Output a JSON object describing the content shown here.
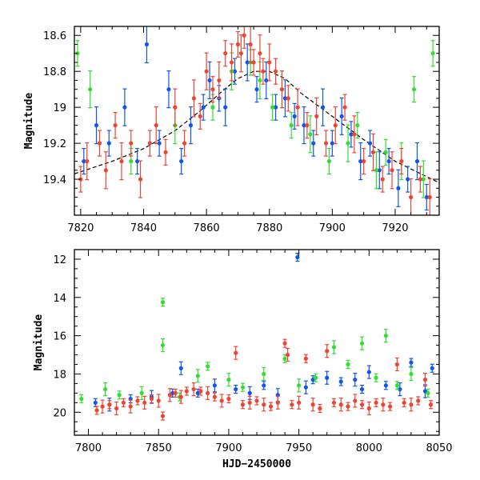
{
  "chart_data": [
    {
      "type": "scatter",
      "xlabel": "",
      "ylabel": "Magnitude",
      "xlim": [
        7818,
        7934
      ],
      "ylim": [
        19.6,
        18.55
      ],
      "inverted_y": true,
      "xticks": [
        7820,
        7840,
        7860,
        7880,
        7900,
        7920
      ],
      "yticks": [
        18.6,
        18.8,
        19,
        19.2,
        19.4
      ],
      "grid": false,
      "model_curve": {
        "style": "dashed",
        "color": "#000000",
        "x": [
          7818,
          7830,
          7840,
          7850,
          7858,
          7865,
          7870,
          7875,
          7880,
          7885,
          7890,
          7900,
          7910,
          7920,
          7934
        ],
        "y": [
          19.37,
          19.3,
          19.23,
          19.13,
          19.02,
          18.91,
          18.84,
          18.8,
          18.8,
          18.84,
          18.92,
          19.05,
          19.18,
          19.3,
          19.42
        ]
      },
      "series": [
        {
          "color": "#1155ee",
          "x": [
            7821,
            7825,
            7829,
            7834,
            7838,
            7841,
            7845,
            7848,
            7852,
            7855,
            7859,
            7861,
            7864,
            7866,
            7869,
            7873,
            7876,
            7879,
            7882,
            7885,
            7888,
            7891,
            7894,
            7897,
            7900,
            7903,
            7906,
            7909,
            7912,
            7915,
            7918,
            7921,
            7924,
            7927,
            7930
          ],
          "y": [
            19.3,
            19.1,
            19.2,
            19.0,
            19.3,
            18.65,
            19.2,
            18.9,
            19.3,
            19.1,
            19.0,
            18.85,
            18.95,
            19.0,
            18.8,
            18.75,
            18.9,
            18.85,
            19.0,
            18.95,
            19.05,
            19.1,
            19.2,
            19.0,
            19.2,
            19.05,
            19.15,
            19.3,
            19.2,
            19.35,
            19.3,
            19.45,
            19.4,
            19.3,
            19.5
          ]
        },
        {
          "color": "#33dd33",
          "x": [
            7819,
            7823,
            7836,
            7850,
            7862,
            7868,
            7874,
            7877,
            7881,
            7884,
            7887,
            7893,
            7899,
            7905,
            7908,
            7914,
            7917,
            7922,
            7926,
            7929,
            7932
          ],
          "y": [
            18.7,
            18.9,
            19.3,
            19.1,
            19.0,
            18.8,
            18.75,
            18.85,
            19.0,
            18.9,
            19.1,
            19.15,
            19.3,
            19.2,
            19.1,
            19.35,
            19.25,
            19.3,
            18.9,
            19.4,
            18.7
          ]
        },
        {
          "color": "#ee4433",
          "x": [
            7820,
            7822,
            7826,
            7828,
            7831,
            7833,
            7836,
            7839,
            7842,
            7844,
            7847,
            7850,
            7853,
            7856,
            7858,
            7860,
            7862,
            7864,
            7866,
            7868,
            7870,
            7871,
            7872,
            7874,
            7875,
            7877,
            7878,
            7880,
            7882,
            7884,
            7886,
            7889,
            7892,
            7895,
            7898,
            7901,
            7904,
            7907,
            7910,
            7913,
            7916,
            7919,
            7922,
            7925,
            7928,
            7931
          ],
          "y": [
            19.4,
            19.3,
            19.2,
            19.35,
            19.1,
            19.3,
            19.2,
            19.4,
            19.2,
            19.1,
            19.25,
            19.0,
            19.2,
            18.95,
            19.05,
            18.8,
            18.9,
            18.85,
            18.7,
            18.75,
            18.65,
            18.7,
            18.6,
            18.65,
            18.75,
            18.7,
            18.8,
            18.75,
            18.8,
            18.9,
            18.95,
            19.0,
            19.1,
            19.05,
            19.2,
            19.1,
            19.0,
            19.15,
            19.3,
            19.25,
            19.4,
            19.35,
            19.3,
            19.5,
            19.4,
            19.5
          ]
        }
      ]
    },
    {
      "type": "scatter",
      "xlabel": "HJD−2450000",
      "ylabel": "Magnitude",
      "xlim": [
        7790,
        8050
      ],
      "ylim": [
        21.2,
        11.5
      ],
      "inverted_y": true,
      "xticks": [
        7800,
        7850,
        7900,
        7950,
        8000,
        8050
      ],
      "yticks": [
        12,
        14,
        16,
        18,
        20
      ],
      "grid": false,
      "series": [
        {
          "color": "#1155ee",
          "x": [
            7805,
            7815,
            7830,
            7845,
            7860,
            7866,
            7878,
            7890,
            7905,
            7915,
            7925,
            7935,
            7949,
            7955,
            7960,
            7970,
            7980,
            7990,
            7995,
            8000,
            8012,
            8022,
            8030,
            8040,
            8045
          ],
          "y": [
            19.5,
            19.6,
            19.3,
            19.2,
            19.0,
            17.7,
            19.0,
            18.6,
            18.8,
            19.0,
            18.6,
            19.1,
            11.9,
            18.7,
            18.3,
            18.2,
            18.4,
            18.3,
            18.8,
            17.9,
            18.6,
            18.8,
            17.4,
            18.9,
            17.7
          ]
        },
        {
          "color": "#33dd33",
          "x": [
            7795,
            7812,
            7822,
            7838,
            7853,
            7853,
            7865,
            7878,
            7885,
            7900,
            7910,
            7925,
            7940,
            7950,
            7962,
            7975,
            7985,
            7995,
            8005,
            8012,
            8020,
            8030,
            8042
          ],
          "y": [
            19.3,
            18.8,
            19.1,
            19.0,
            14.25,
            16.5,
            19.2,
            18.1,
            17.6,
            18.3,
            18.7,
            18.0,
            17.2,
            18.6,
            18.2,
            16.6,
            17.5,
            16.4,
            18.2,
            16.0,
            18.6,
            18.0,
            19.0
          ]
        },
        {
          "color": "#ee4433",
          "x": [
            7806,
            7810,
            7815,
            7820,
            7825,
            7830,
            7835,
            7840,
            7845,
            7850,
            7853,
            7858,
            7862,
            7866,
            7870,
            7875,
            7880,
            7885,
            7890,
            7895,
            7900,
            7905,
            7910,
            7915,
            7920,
            7925,
            7930,
            7935,
            7940,
            7942,
            7945,
            7950,
            7955,
            7960,
            7965,
            7970,
            7975,
            7980,
            7985,
            7990,
            7995,
            8000,
            8005,
            8010,
            8015,
            8020,
            8025,
            8030,
            8035,
            8040,
            8044
          ],
          "y": [
            19.9,
            19.7,
            19.6,
            19.8,
            19.5,
            19.7,
            19.4,
            19.5,
            19.3,
            19.4,
            20.2,
            19.1,
            19.0,
            19.2,
            18.9,
            18.8,
            18.9,
            19.0,
            19.2,
            19.4,
            19.3,
            16.9,
            19.6,
            19.5,
            19.4,
            19.6,
            19.7,
            19.5,
            16.4,
            17.0,
            19.6,
            19.5,
            17.2,
            19.6,
            19.8,
            16.8,
            19.5,
            19.6,
            19.7,
            19.4,
            19.6,
            19.8,
            19.5,
            19.6,
            19.7,
            17.5,
            19.5,
            19.6,
            19.4,
            18.3,
            19.6
          ]
        }
      ]
    }
  ]
}
